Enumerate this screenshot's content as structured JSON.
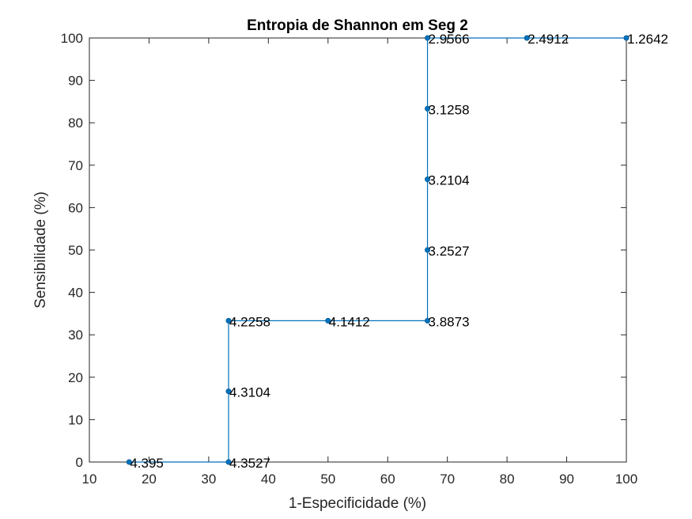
{
  "chart_data": {
    "type": "line",
    "title": "Entropia de Shannon em Seg 2",
    "xlabel": "1-Especificidade (%)",
    "ylabel": "Sensibilidade (%)",
    "xlim": [
      10,
      100
    ],
    "ylim": [
      0,
      100
    ],
    "xticks": [
      "10",
      "20",
      "30",
      "40",
      "50",
      "60",
      "70",
      "80",
      "90",
      "100"
    ],
    "yticks": [
      "0",
      "10",
      "20",
      "30",
      "40",
      "50",
      "60",
      "70",
      "80",
      "90",
      "100"
    ],
    "grid": false,
    "line_style": "step",
    "color": "#0072BD",
    "points": [
      {
        "x": 16.67,
        "y": 0,
        "label": "4.395"
      },
      {
        "x": 33.33,
        "y": 0,
        "label": "4.3527"
      },
      {
        "x": 33.33,
        "y": 16.67,
        "label": "4.3104"
      },
      {
        "x": 33.33,
        "y": 33.33,
        "label": "4.2258"
      },
      {
        "x": 50,
        "y": 33.33,
        "label": "4.1412"
      },
      {
        "x": 66.67,
        "y": 33.33,
        "label": "3.8873"
      },
      {
        "x": 66.67,
        "y": 50,
        "label": "3.2527"
      },
      {
        "x": 66.67,
        "y": 66.67,
        "label": "3.2104"
      },
      {
        "x": 66.67,
        "y": 83.33,
        "label": "3.1258"
      },
      {
        "x": 66.67,
        "y": 100,
        "label": "2.9566"
      },
      {
        "x": 83.33,
        "y": 100,
        "label": "2.4912"
      },
      {
        "x": 100,
        "y": 100,
        "label": "1.2642"
      }
    ]
  }
}
